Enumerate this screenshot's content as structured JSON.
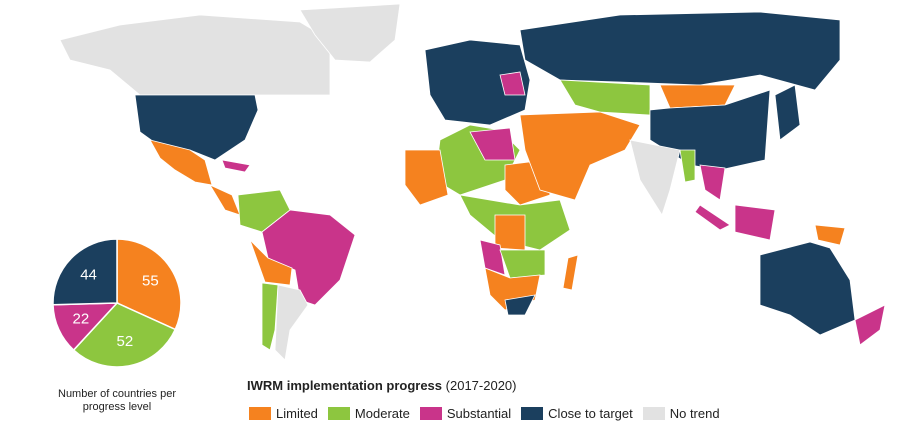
{
  "chart_data": {
    "type": "pie",
    "title": "Number of countries per progress level",
    "categories": [
      "Limited",
      "Moderate",
      "Substantial",
      "Close to target"
    ],
    "values": [
      55,
      52,
      22,
      44
    ],
    "colors": [
      "#f5821f",
      "#8dc63f",
      "#c9348a",
      "#1b3f5e"
    ]
  },
  "legend": {
    "title": "IWRM implementation progress",
    "subtitle": "(2017-2020)",
    "extra_item": "No trend",
    "extra_color": "#e2e2e2"
  }
}
